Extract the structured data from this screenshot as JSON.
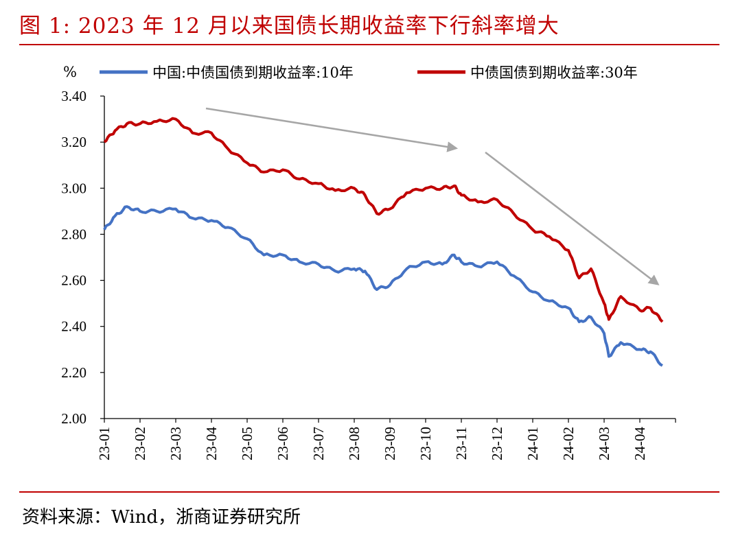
{
  "figure": {
    "title": "图 1:  2023 年 12 月以来国债长期收益率下行斜率增大",
    "source": "资料来源：Wind，浙商证券研究所"
  },
  "colors": {
    "accent": "#C00000",
    "series_10y": "#4472C4",
    "series_30y": "#C00000",
    "arrow": "#A6A6A6",
    "axis": "#000000"
  },
  "chart_data": {
    "type": "line",
    "unit_label": "%",
    "ylim": [
      2.0,
      3.4
    ],
    "yticks": [
      "2.00",
      "2.20",
      "2.40",
      "2.60",
      "2.80",
      "3.00",
      "3.20",
      "3.40"
    ],
    "x_tick_labels": [
      "23-01",
      "23-02",
      "23-03",
      "23-04",
      "23-05",
      "23-06",
      "23-07",
      "23-08",
      "23-09",
      "23-10",
      "23-11",
      "23-12",
      "24-01",
      "24-02",
      "24-03",
      "24-04"
    ],
    "legend": "top",
    "grid": false,
    "series": [
      {
        "name": "中国:中债国债到期收益率:10年",
        "color": "#4472C4",
        "points": [
          [
            "23-01",
            2.82
          ],
          [
            "23-01-10",
            2.88
          ],
          [
            "23-01-20",
            2.92
          ],
          [
            "23-02",
            2.9
          ],
          [
            "23-02-15",
            2.9
          ],
          [
            "23-03",
            2.91
          ],
          [
            "23-03-15",
            2.87
          ],
          [
            "23-04",
            2.86
          ],
          [
            "23-04-15",
            2.83
          ],
          [
            "23-05",
            2.78
          ],
          [
            "23-05-15",
            2.71
          ],
          [
            "23-06",
            2.71
          ],
          [
            "23-06-15",
            2.68
          ],
          [
            "23-07",
            2.67
          ],
          [
            "23-07-15",
            2.64
          ],
          [
            "23-08",
            2.65
          ],
          [
            "23-08-10",
            2.64
          ],
          [
            "23-08-20",
            2.56
          ],
          [
            "23-09",
            2.58
          ],
          [
            "23-09-15",
            2.65
          ],
          [
            "23-10",
            2.68
          ],
          [
            "23-10-15",
            2.67
          ],
          [
            "23-10-25",
            2.71
          ],
          [
            "23-11",
            2.68
          ],
          [
            "23-11-15",
            2.66
          ],
          [
            "23-12",
            2.68
          ],
          [
            "23-12-15",
            2.62
          ],
          [
            "24-01",
            2.55
          ],
          [
            "24-01-15",
            2.51
          ],
          [
            "24-02",
            2.48
          ],
          [
            "24-02-10",
            2.42
          ],
          [
            "24-02-20",
            2.44
          ],
          [
            "24-03",
            2.37
          ],
          [
            "24-03-05",
            2.27
          ],
          [
            "24-03-15",
            2.33
          ],
          [
            "24-04",
            2.3
          ],
          [
            "24-04-10",
            2.29
          ],
          [
            "24-04-20",
            2.23
          ]
        ]
      },
      {
        "name": "中债国债到期收益率:30年",
        "color": "#C00000",
        "points": [
          [
            "23-01",
            3.2
          ],
          [
            "23-01-10",
            3.25
          ],
          [
            "23-01-20",
            3.28
          ],
          [
            "23-02",
            3.28
          ],
          [
            "23-02-15",
            3.29
          ],
          [
            "23-03",
            3.3
          ],
          [
            "23-03-15",
            3.24
          ],
          [
            "23-04",
            3.24
          ],
          [
            "23-04-15",
            3.17
          ],
          [
            "23-05",
            3.11
          ],
          [
            "23-05-15",
            3.07
          ],
          [
            "23-06",
            3.08
          ],
          [
            "23-06-15",
            3.04
          ],
          [
            "23-07",
            3.02
          ],
          [
            "23-07-15",
            2.99
          ],
          [
            "23-08",
            3.0
          ],
          [
            "23-08-10",
            2.97
          ],
          [
            "23-08-20",
            2.89
          ],
          [
            "23-09",
            2.91
          ],
          [
            "23-09-15",
            2.98
          ],
          [
            "23-10",
            3.0
          ],
          [
            "23-10-15",
            3.0
          ],
          [
            "23-10-25",
            3.01
          ],
          [
            "23-11",
            2.97
          ],
          [
            "23-11-15",
            2.94
          ],
          [
            "23-12",
            2.95
          ],
          [
            "23-12-15",
            2.89
          ],
          [
            "24-01",
            2.82
          ],
          [
            "24-01-15",
            2.79
          ],
          [
            "24-02",
            2.73
          ],
          [
            "24-02-10",
            2.61
          ],
          [
            "24-02-20",
            2.65
          ],
          [
            "24-03",
            2.5
          ],
          [
            "24-03-05",
            2.43
          ],
          [
            "24-03-15",
            2.53
          ],
          [
            "24-04",
            2.47
          ],
          [
            "24-04-10",
            2.48
          ],
          [
            "24-04-20",
            2.42
          ]
        ]
      }
    ]
  }
}
